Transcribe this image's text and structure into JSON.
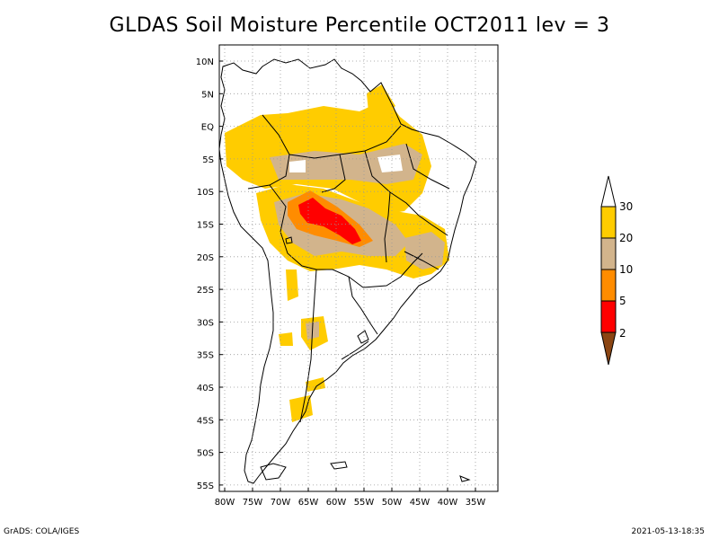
{
  "title": "GLDAS Soil Moisture Percentile OCT2011 lev = 3",
  "map": {
    "lat_labels": [
      "10N",
      "5N",
      "EQ",
      "5S",
      "10S",
      "15S",
      "20S",
      "25S",
      "30S",
      "35S",
      "40S",
      "45S",
      "50S",
      "55S"
    ],
    "lon_labels": [
      "80W",
      "75W",
      "70W",
      "65W",
      "60W",
      "55W",
      "50W",
      "45W",
      "40W",
      "35W"
    ],
    "grid": "dotted"
  },
  "legend": {
    "labels": [
      "30",
      "20",
      "10",
      "5",
      "2"
    ],
    "colors": {
      "above_30": "#ffffff",
      "c20_30": "#ffcc00",
      "c10_20": "#d2b48c",
      "c5_10": "#ff8c00",
      "c2_5": "#ff0000",
      "below_2": "#8b4513"
    }
  },
  "footer": {
    "left": "GrADS: COLA/IGES",
    "right": "2021-05-13-18:35"
  }
}
